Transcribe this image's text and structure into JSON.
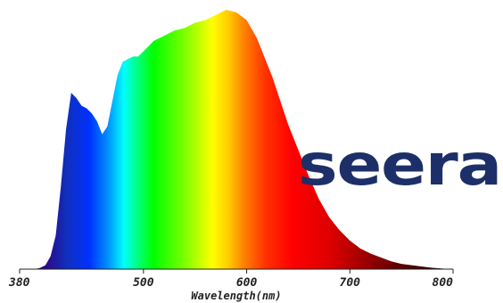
{
  "chart_data": {
    "type": "area",
    "title": "",
    "xlabel": "Wavelength(nm)",
    "ylabel": "",
    "xlim": [
      380,
      800
    ],
    "ylim": [
      0,
      1
    ],
    "x_ticks": [
      380,
      500,
      600,
      700,
      800
    ],
    "x_tick_labels": [
      "380",
      "500",
      "600",
      "700",
      "800"
    ],
    "grid": false,
    "legend": "none",
    "fill": "visible-spectrum-gradient",
    "series": [
      {
        "x": [
          380,
          395,
          400,
          405,
          410,
          415,
          420,
          425,
          430,
          435,
          440,
          445,
          450,
          455,
          460,
          465,
          470,
          475,
          480,
          485,
          490,
          495,
          500,
          505,
          510,
          520,
          530,
          540,
          550,
          560,
          570,
          580,
          590,
          600,
          610,
          620,
          625,
          630,
          635,
          640,
          645,
          650,
          660,
          670,
          680,
          690,
          700,
          710,
          720,
          730,
          740,
          750,
          760,
          770,
          780,
          790,
          800
        ],
        "values": [
          0.0,
          0.0,
          0.005,
          0.015,
          0.05,
          0.13,
          0.32,
          0.54,
          0.68,
          0.66,
          0.63,
          0.62,
          0.6,
          0.57,
          0.52,
          0.55,
          0.65,
          0.75,
          0.8,
          0.81,
          0.82,
          0.82,
          0.84,
          0.86,
          0.88,
          0.9,
          0.92,
          0.93,
          0.95,
          0.96,
          0.98,
          1.0,
          0.99,
          0.96,
          0.89,
          0.79,
          0.74,
          0.68,
          0.62,
          0.56,
          0.51,
          0.46,
          0.36,
          0.27,
          0.2,
          0.15,
          0.11,
          0.08,
          0.06,
          0.045,
          0.03,
          0.02,
          0.015,
          0.01,
          0.005,
          0.002,
          0.0
        ]
      }
    ]
  },
  "logo": {
    "text": "seera",
    "color": "#1c2f68"
  },
  "colors": {
    "axis": "#222222",
    "text": "#222222"
  }
}
